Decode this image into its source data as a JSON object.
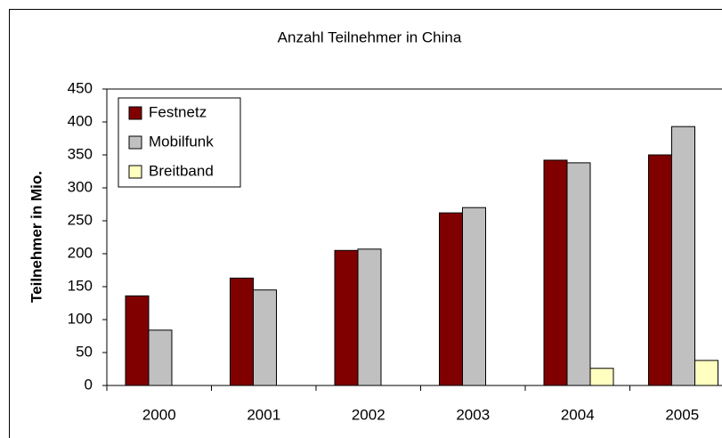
{
  "chart_data": {
    "type": "bar",
    "title": "Anzahl Teilnehmer in China",
    "y_label": "Teilnehmer in Mio.",
    "categories": [
      "2000",
      "2001",
      "2002",
      "2003",
      "2004",
      "2005"
    ],
    "series": [
      {
        "name": "Festnetz",
        "color": "#800000",
        "values": [
          136,
          163,
          205,
          262,
          342,
          350
        ]
      },
      {
        "name": "Mobilfunk",
        "color": "#c0c0c0",
        "values": [
          84,
          145,
          207,
          270,
          338,
          393
        ]
      },
      {
        "name": "Breitband",
        "color": "#ffffc0",
        "values": [
          null,
          null,
          null,
          null,
          26,
          38
        ]
      }
    ],
    "ylim": [
      0,
      450
    ],
    "yticks": [
      0,
      50,
      100,
      150,
      200,
      250,
      300,
      350,
      400,
      450
    ],
    "legend": "top-left"
  }
}
